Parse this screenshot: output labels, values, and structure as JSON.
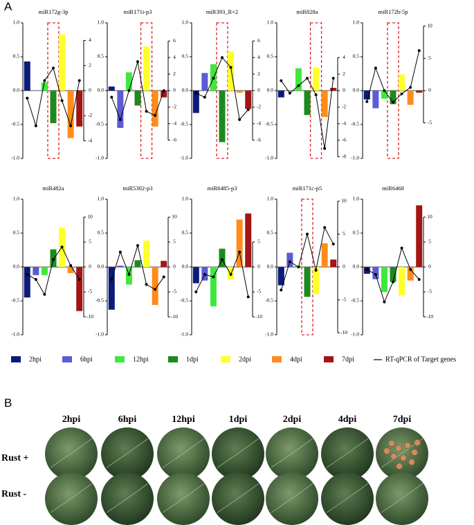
{
  "panel_a_label": "A",
  "legend": {
    "series": [
      {
        "name": "2hpi",
        "color": "#0c1b7a"
      },
      {
        "name": "6hpi",
        "color": "#5b5bd6"
      },
      {
        "name": "12hpi",
        "color": "#3fe83f"
      },
      {
        "name": "1dpi",
        "color": "#1d8a1d"
      },
      {
        "name": "2dpi",
        "color": "#ffff2a"
      },
      {
        "name": "4dpi",
        "color": "#ff8c1a"
      },
      {
        "name": "7dpi",
        "color": "#a31515"
      }
    ],
    "line": {
      "name": "RT-qPCR of Target genes",
      "color": "#000000"
    }
  },
  "chart_data": [
    {
      "type": "bar",
      "title": "miR172g-3p",
      "values": [
        0.43,
        0,
        0.12,
        -0.48,
        0.83,
        -0.7,
        -0.53
      ],
      "line_values": [
        -0.6,
        -2.8,
        0.8,
        1.8,
        -0.8,
        -2.8,
        0.8
      ],
      "highlight": 3,
      "ylim": [
        -1,
        1
      ],
      "yticks": [
        {
          "value": 1,
          "label": "1.0"
        },
        {
          "value": 0.5,
          "label": "0.5"
        },
        {
          "value": 0,
          "label": "0.0"
        },
        {
          "value": -0.5,
          "label": "-0.5"
        },
        {
          "value": -1,
          "label": "-1.0"
        }
      ],
      "y2lim": [
        -5.4,
        5.4
      ],
      "y2ticks": [
        4,
        2,
        0,
        -2,
        -4
      ]
    },
    {
      "type": "bar",
      "title": "miR171i-p3",
      "values": [
        0.06,
        -0.55,
        0.27,
        -0.22,
        0.65,
        -0.53,
        -0.1
      ],
      "line_values": [
        -0.8,
        -3.5,
        0,
        3.5,
        -2.5,
        -3,
        0
      ],
      "highlight": 4,
      "ylim": [
        -1,
        1
      ],
      "yticks": [
        {
          "value": 1,
          "label": "1.0"
        },
        {
          "value": 0.5,
          "label": "0.5"
        },
        {
          "value": 0,
          "label": "0.0"
        },
        {
          "value": -0.5,
          "label": "-0.5"
        },
        {
          "value": -1,
          "label": "-1.0"
        }
      ],
      "y2lim": [
        -8.2,
        8.2
      ],
      "y2ticks": [
        6,
        4,
        2,
        0,
        -2,
        -4,
        -6
      ]
    },
    {
      "type": "bar",
      "title": "miR393_R+2",
      "values": [
        -0.33,
        0.26,
        0.39,
        -0.76,
        0.58,
        -0.03,
        -0.27
      ],
      "line_values": [
        -0.3,
        -0.8,
        1.5,
        4,
        2.8,
        -3.5,
        -2.3
      ],
      "highlight": 3,
      "ylim": [
        -1,
        1
      ],
      "yticks": [
        {
          "value": 1,
          "label": "1.0"
        },
        {
          "value": 0.5,
          "label": "0.5"
        },
        {
          "value": 0,
          "label": "0.0"
        },
        {
          "value": -0.5,
          "label": "-0.5"
        },
        {
          "value": -1,
          "label": "-1.0"
        }
      ],
      "y2lim": [
        -8.2,
        8.2
      ],
      "y2ticks": [
        6,
        4,
        2,
        0,
        -2,
        -4,
        -6
      ]
    },
    {
      "type": "bar",
      "title": "miR828a",
      "values": [
        -0.1,
        0,
        0.33,
        -0.36,
        0.34,
        -0.39,
        0.04
      ],
      "line_values": [
        1.2,
        -0.3,
        0.6,
        1.5,
        -0.5,
        -7,
        1.5
      ],
      "highlight": 4,
      "ylim": [
        -1,
        1
      ],
      "yticks": [
        {
          "value": 1,
          "label": "1.0"
        },
        {
          "value": 0.5,
          "label": "0.5"
        },
        {
          "value": 0,
          "label": "0.0"
        },
        {
          "value": -0.5,
          "label": "-0.5"
        },
        {
          "value": -1,
          "label": "-1.0"
        }
      ],
      "y2lim": [
        -8.2,
        8.2
      ],
      "y2ticks": [
        4,
        2,
        0,
        -2,
        -4,
        -6,
        -8
      ]
    },
    {
      "type": "bar",
      "title": "miR172b-5p",
      "values": [
        -0.13,
        -0.26,
        -0.12,
        -0.2,
        0.24,
        -0.21,
        -0.03
      ],
      "line_values": [
        -1.7,
        3.5,
        0,
        -1.8,
        -0.5,
        0.5,
        6.2
      ],
      "highlight": 3,
      "ylim": [
        -1,
        1
      ],
      "yticks": [
        {
          "value": 1,
          "label": "1.0"
        },
        {
          "value": 0.5,
          "label": "0.5"
        },
        {
          "value": 0,
          "label": "0.0"
        },
        {
          "value": -0.5,
          "label": "-0.5"
        },
        {
          "value": -1,
          "label": "-1.0"
        }
      ],
      "y2lim": [
        -10.5,
        10.5
      ],
      "y2ticks": [
        10,
        5,
        0,
        -5
      ]
    },
    {
      "type": "bar",
      "title": "miR482a",
      "values": [
        -0.45,
        -0.12,
        -0.12,
        0.26,
        0.58,
        -0.09,
        -0.65
      ],
      "line_values": [
        -1.5,
        -2.5,
        -5.5,
        1.5,
        4,
        0.3,
        -2.5
      ],
      "ylim": [
        -1,
        1
      ],
      "yticks": [
        {
          "value": 1,
          "label": "1.0"
        },
        {
          "value": 0.5,
          "label": "0.5"
        },
        {
          "value": 0,
          "label": "0.0"
        },
        {
          "value": -0.5,
          "label": "-0.5"
        },
        {
          "value": -1,
          "label": "-1.0"
        }
      ],
      "y2lim": [
        -13.6,
        13.6
      ],
      "y2ticks": [
        10,
        5,
        0,
        -5,
        -10
      ]
    },
    {
      "type": "bar",
      "title": "miR5302-p3",
      "values": [
        -0.63,
        0.02,
        -0.26,
        0.1,
        0.39,
        -0.56,
        0.09
      ],
      "line_values": [
        -2.5,
        3,
        -1.5,
        4.3,
        -3.5,
        -4.5,
        -2
      ],
      "ylim": [
        -1,
        1
      ],
      "yticks": [
        {
          "value": 1,
          "label": "1.0"
        },
        {
          "value": 0.5,
          "label": "0.5"
        },
        {
          "value": 0,
          "label": "0.0"
        },
        {
          "value": -0.5,
          "label": "-0.5"
        },
        {
          "value": -1,
          "label": "-1.0"
        }
      ],
      "y2lim": [
        -13.6,
        13.6
      ],
      "y2ticks": [
        10,
        5,
        0,
        -5,
        -10
      ]
    },
    {
      "type": "bar",
      "title": "miR6485-p3",
      "values": [
        -0.24,
        -0.2,
        -0.58,
        0.27,
        -0.18,
        0.7,
        0.79
      ],
      "line_values": [
        -5,
        -1.5,
        -2,
        1.5,
        -1.5,
        3,
        -6
      ],
      "ylim": [
        -1,
        1
      ],
      "yticks": [
        {
          "value": 1,
          "label": "1.0"
        },
        {
          "value": 0.5,
          "label": "0.5"
        },
        {
          "value": 0,
          "label": "0.0"
        },
        {
          "value": -0.5,
          "label": "-0.5"
        },
        {
          "value": -1,
          "label": "-1.0"
        }
      ],
      "y2lim": [
        -13.6,
        13.6
      ],
      "y2ticks": [
        5,
        0,
        -5,
        -10
      ]
    },
    {
      "type": "bar",
      "title": "miR171c-p5",
      "values": [
        -0.27,
        0.21,
        0.02,
        -0.44,
        -0.4,
        0.35,
        0.11
      ],
      "line_values": [
        -3.5,
        0.8,
        0,
        5,
        -0.5,
        6,
        3.5
      ],
      "highlight": 3,
      "ylim": [
        -1,
        1
      ],
      "yticks": [
        {
          "value": 1,
          "label": "1.0"
        },
        {
          "value": 0.5,
          "label": "0.5"
        },
        {
          "value": 0,
          "label": "0.0"
        },
        {
          "value": -0.5,
          "label": "-0.5"
        },
        {
          "value": -1,
          "label": "-1.0"
        }
      ],
      "y2lim": [
        -10.3,
        10.3
      ],
      "y2ticks": [
        10,
        5,
        0,
        -5,
        -10
      ]
    },
    {
      "type": "bar",
      "title": "miR6468",
      "values": [
        -0.1,
        -0.18,
        -0.37,
        -0.22,
        -0.42,
        -0.2,
        0.91
      ],
      "line_values": [
        -0.5,
        -1.5,
        -7,
        -3,
        3.8,
        -0.5,
        -2.5
      ],
      "ylim": [
        -1,
        1
      ],
      "yticks": [
        {
          "value": 1,
          "label": "1.0"
        },
        {
          "value": 0.5,
          "label": "0.5"
        },
        {
          "value": 0,
          "label": "0.0"
        },
        {
          "value": -0.5,
          "label": "-0.5"
        },
        {
          "value": -1,
          "label": "-1.0"
        }
      ],
      "y2lim": [
        -13.6,
        13.6
      ],
      "y2ticks": [
        10,
        5,
        0,
        -5,
        -10
      ]
    }
  ],
  "panel_b": {
    "label": "B",
    "columns": [
      "2hpi",
      "6hpi",
      "12hpi",
      "1dpi",
      "2dpi",
      "4dpi",
      "7dpi"
    ],
    "rows": [
      "Rust +",
      "Rust -"
    ]
  }
}
